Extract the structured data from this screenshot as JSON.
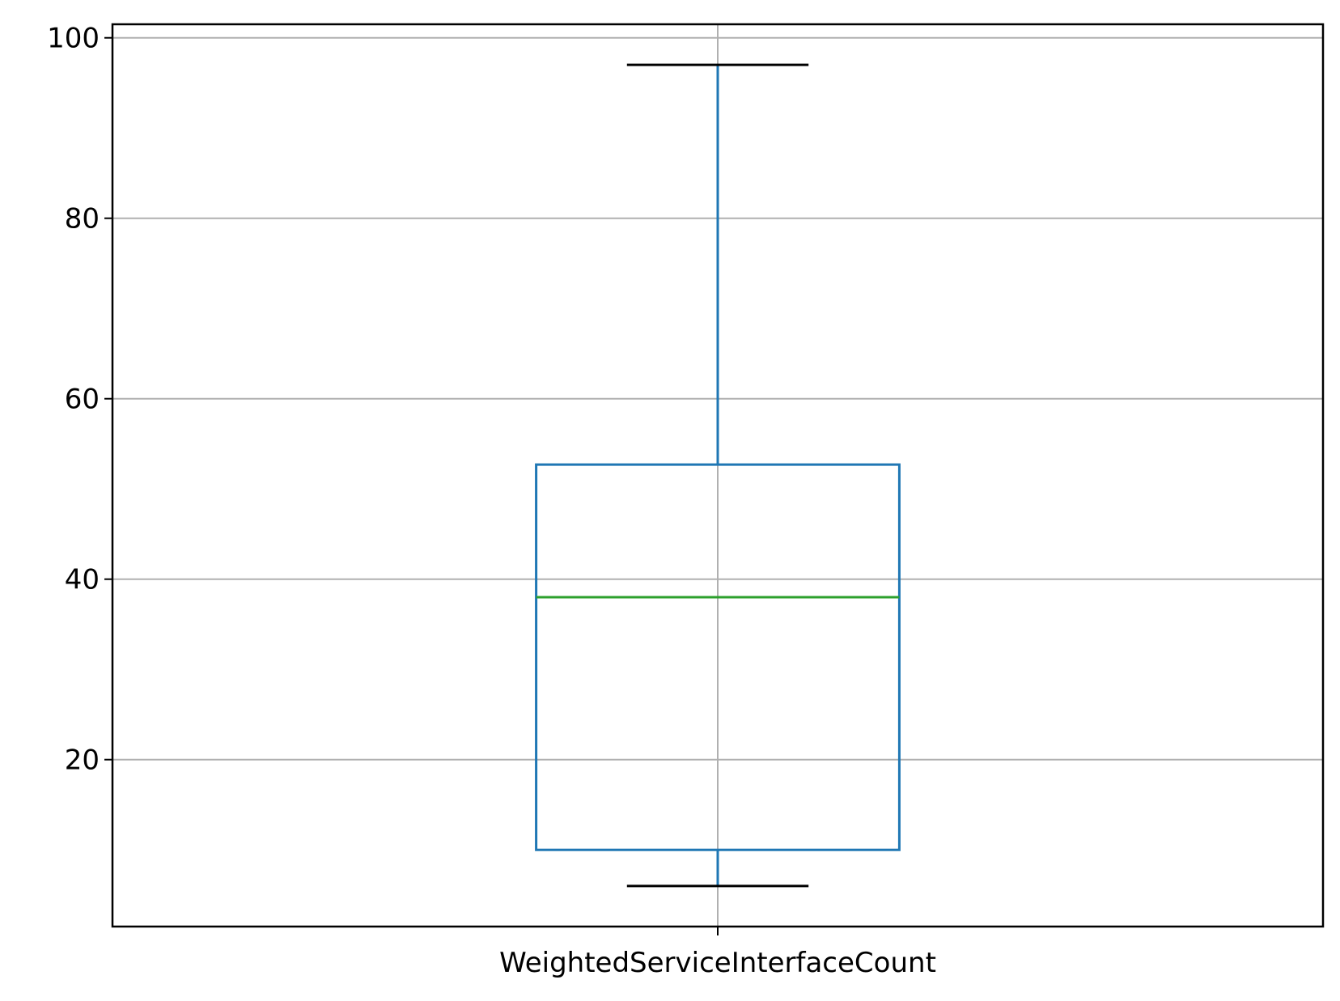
{
  "chart_data": {
    "type": "box",
    "title": "",
    "xlabel": "",
    "ylabel": "",
    "categories": [
      "WeightedServiceInterfaceCount"
    ],
    "boxes": [
      {
        "label": "WeightedServiceInterfaceCount",
        "whisker_low": 6,
        "q1": 10,
        "median": 38,
        "q3": 52.7,
        "whisker_high": 97
      }
    ],
    "ylim": [
      1.5,
      101.5
    ],
    "yticks": [
      20,
      40,
      60,
      80,
      100
    ],
    "grid": true,
    "colors": {
      "box": "#1f77b4",
      "median": "#2ca02c",
      "caps": "#000000",
      "grid": "#b0b0b0",
      "axes": "#000000"
    }
  }
}
